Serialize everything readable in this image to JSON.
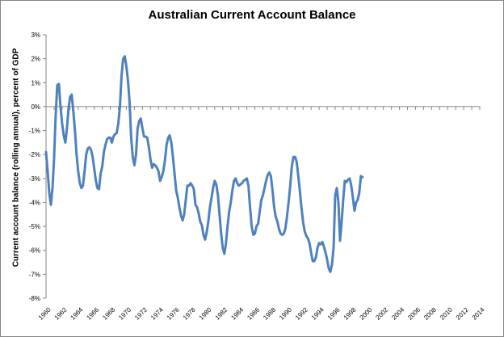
{
  "chart_data": {
    "type": "line",
    "title": "Australian Current Account Balance",
    "xlabel": "",
    "ylabel": "Current account balance (rolling annual), percent of GDP",
    "xlim": [
      1960,
      2014
    ],
    "ylim": [
      -8,
      3
    ],
    "y_ticks": [
      "3%",
      "2%",
      "1%",
      "0%",
      "-1%",
      "-2%",
      "-3%",
      "-4%",
      "-5%",
      "-6%",
      "-7%",
      "-8%"
    ],
    "x_ticks": [
      "1960",
      "1962",
      "1964",
      "1966",
      "1968",
      "1970",
      "1972",
      "1974",
      "1976",
      "1978",
      "1980",
      "1982",
      "1984",
      "1986",
      "1988",
      "1990",
      "1992",
      "1994",
      "1996",
      "1998",
      "2000",
      "2002",
      "2004",
      "2006",
      "2008",
      "2010",
      "2012",
      "2014"
    ],
    "grid": false,
    "legend": "none",
    "series": [
      {
        "color": "#4f81bd",
        "points": [
          [
            1960.0,
            -1.9
          ],
          [
            1960.2,
            -2.7
          ],
          [
            1960.4,
            -3.6
          ],
          [
            1960.6,
            -4.1
          ],
          [
            1960.8,
            -3.4
          ],
          [
            1961.0,
            -2.2
          ],
          [
            1961.2,
            -0.4
          ],
          [
            1961.4,
            0.9
          ],
          [
            1961.6,
            0.95
          ],
          [
            1961.8,
            0.0
          ],
          [
            1962.0,
            -0.7
          ],
          [
            1962.2,
            -1.2
          ],
          [
            1962.4,
            -1.5
          ],
          [
            1962.6,
            -0.9
          ],
          [
            1962.8,
            -0.1
          ],
          [
            1963.0,
            0.4
          ],
          [
            1963.2,
            0.5
          ],
          [
            1963.4,
            -0.2
          ],
          [
            1963.6,
            -1.0
          ],
          [
            1963.8,
            -2.0
          ],
          [
            1964.0,
            -2.7
          ],
          [
            1964.2,
            -3.2
          ],
          [
            1964.4,
            -3.4
          ],
          [
            1964.6,
            -3.3
          ],
          [
            1964.8,
            -2.7
          ],
          [
            1965.0,
            -2.0
          ],
          [
            1965.2,
            -1.75
          ],
          [
            1965.4,
            -1.7
          ],
          [
            1965.6,
            -1.8
          ],
          [
            1965.8,
            -2.1
          ],
          [
            1966.0,
            -2.6
          ],
          [
            1966.2,
            -3.1
          ],
          [
            1966.4,
            -3.4
          ],
          [
            1966.6,
            -3.45
          ],
          [
            1966.8,
            -2.8
          ],
          [
            1967.0,
            -2.5
          ],
          [
            1967.2,
            -1.9
          ],
          [
            1967.4,
            -1.6
          ],
          [
            1967.6,
            -1.35
          ],
          [
            1967.8,
            -1.3
          ],
          [
            1968.0,
            -1.3
          ],
          [
            1968.2,
            -1.5
          ],
          [
            1968.4,
            -1.25
          ],
          [
            1968.6,
            -1.15
          ],
          [
            1968.8,
            -1.1
          ],
          [
            1969.0,
            -0.7
          ],
          [
            1969.2,
            0.0
          ],
          [
            1969.4,
            1.3
          ],
          [
            1969.6,
            2.0
          ],
          [
            1969.8,
            2.1
          ],
          [
            1970.0,
            1.7
          ],
          [
            1970.2,
            1.1
          ],
          [
            1970.4,
            0.2
          ],
          [
            1970.6,
            -1.3
          ],
          [
            1970.8,
            -2.1
          ],
          [
            1971.0,
            -2.45
          ],
          [
            1971.2,
            -2.0
          ],
          [
            1971.4,
            -0.9
          ],
          [
            1971.6,
            -0.6
          ],
          [
            1971.8,
            -0.5
          ],
          [
            1972.0,
            -0.9
          ],
          [
            1972.2,
            -1.25
          ],
          [
            1972.4,
            -1.25
          ],
          [
            1972.6,
            -1.3
          ],
          [
            1972.8,
            -1.7
          ],
          [
            1973.0,
            -2.2
          ],
          [
            1973.2,
            -2.55
          ],
          [
            1973.4,
            -2.4
          ],
          [
            1973.6,
            -2.45
          ],
          [
            1973.8,
            -2.55
          ],
          [
            1974.0,
            -2.7
          ],
          [
            1974.2,
            -3.1
          ],
          [
            1974.4,
            -2.95
          ],
          [
            1974.6,
            -2.7
          ],
          [
            1974.8,
            -2.25
          ],
          [
            1975.0,
            -1.6
          ],
          [
            1975.2,
            -1.3
          ],
          [
            1975.4,
            -1.2
          ],
          [
            1975.6,
            -1.5
          ],
          [
            1975.8,
            -2.1
          ],
          [
            1976.0,
            -2.8
          ],
          [
            1976.2,
            -3.5
          ],
          [
            1976.4,
            -3.8
          ],
          [
            1976.6,
            -4.2
          ],
          [
            1976.8,
            -4.55
          ],
          [
            1977.0,
            -4.75
          ],
          [
            1977.2,
            -4.5
          ],
          [
            1977.4,
            -3.9
          ],
          [
            1977.6,
            -3.3
          ],
          [
            1977.8,
            -3.3
          ],
          [
            1978.0,
            -3.2
          ],
          [
            1978.2,
            -3.3
          ],
          [
            1978.4,
            -3.45
          ],
          [
            1978.6,
            -4.1
          ],
          [
            1978.8,
            -4.2
          ],
          [
            1979.0,
            -4.45
          ],
          [
            1979.2,
            -4.8
          ],
          [
            1979.4,
            -4.95
          ],
          [
            1979.6,
            -5.35
          ],
          [
            1979.8,
            -5.55
          ],
          [
            1980.0,
            -5.25
          ],
          [
            1980.2,
            -4.8
          ],
          [
            1980.4,
            -4.2
          ],
          [
            1980.6,
            -3.8
          ],
          [
            1980.8,
            -3.4
          ],
          [
            1981.0,
            -3.1
          ],
          [
            1981.2,
            -3.25
          ],
          [
            1981.4,
            -3.7
          ],
          [
            1981.6,
            -4.5
          ],
          [
            1981.8,
            -5.3
          ],
          [
            1982.0,
            -5.9
          ],
          [
            1982.2,
            -6.15
          ],
          [
            1982.4,
            -5.7
          ],
          [
            1982.6,
            -5.0
          ],
          [
            1982.8,
            -4.4
          ],
          [
            1983.0,
            -4.0
          ],
          [
            1983.2,
            -3.5
          ],
          [
            1983.4,
            -3.1
          ],
          [
            1983.6,
            -3.0
          ],
          [
            1983.8,
            -3.2
          ],
          [
            1984.0,
            -3.3
          ],
          [
            1984.2,
            -3.25
          ],
          [
            1984.4,
            -3.2
          ],
          [
            1984.6,
            -3.1
          ],
          [
            1984.8,
            -3.05
          ],
          [
            1985.0,
            -3.0
          ],
          [
            1985.2,
            -3.3
          ],
          [
            1985.4,
            -4.2
          ],
          [
            1985.6,
            -5.0
          ],
          [
            1985.8,
            -5.35
          ],
          [
            1986.0,
            -5.3
          ],
          [
            1986.2,
            -5.0
          ],
          [
            1986.4,
            -4.9
          ],
          [
            1986.6,
            -4.4
          ],
          [
            1986.8,
            -3.9
          ],
          [
            1987.0,
            -3.7
          ],
          [
            1987.2,
            -3.4
          ],
          [
            1987.4,
            -3.1
          ],
          [
            1987.6,
            -2.85
          ],
          [
            1987.8,
            -2.75
          ],
          [
            1988.0,
            -2.9
          ],
          [
            1988.2,
            -3.5
          ],
          [
            1988.4,
            -4.2
          ],
          [
            1988.6,
            -4.6
          ],
          [
            1988.8,
            -4.8
          ],
          [
            1989.0,
            -5.1
          ],
          [
            1989.2,
            -5.3
          ],
          [
            1989.4,
            -5.35
          ],
          [
            1989.6,
            -5.3
          ],
          [
            1989.8,
            -5.1
          ],
          [
            1990.0,
            -4.6
          ],
          [
            1990.2,
            -4.0
          ],
          [
            1990.4,
            -3.3
          ],
          [
            1990.6,
            -2.5
          ],
          [
            1990.8,
            -2.1
          ],
          [
            1991.0,
            -2.1
          ],
          [
            1991.2,
            -2.3
          ],
          [
            1991.4,
            -2.9
          ],
          [
            1991.6,
            -3.5
          ],
          [
            1991.8,
            -4.2
          ],
          [
            1992.0,
            -4.8
          ],
          [
            1992.2,
            -5.2
          ],
          [
            1992.4,
            -5.4
          ],
          [
            1992.6,
            -5.5
          ],
          [
            1992.8,
            -5.7
          ],
          [
            1993.0,
            -6.1
          ],
          [
            1993.2,
            -6.45
          ],
          [
            1993.4,
            -6.45
          ],
          [
            1993.6,
            -6.3
          ],
          [
            1993.8,
            -5.9
          ],
          [
            1994.0,
            -5.7
          ],
          [
            1994.2,
            -5.75
          ],
          [
            1994.4,
            -5.65
          ],
          [
            1994.6,
            -5.85
          ],
          [
            1994.8,
            -6.1
          ],
          [
            1995.0,
            -6.4
          ],
          [
            1995.2,
            -6.75
          ],
          [
            1995.4,
            -6.9
          ],
          [
            1995.6,
            -6.6
          ],
          [
            1995.8,
            -5.9
          ],
          [
            1996.0,
            -3.7
          ],
          [
            1996.2,
            -3.4
          ],
          [
            1996.4,
            -4.0
          ],
          [
            1996.6,
            -5.6
          ],
          [
            1996.8,
            -4.8
          ],
          [
            1997.0,
            -3.9
          ],
          [
            1997.2,
            -3.1
          ],
          [
            1997.4,
            -3.15
          ],
          [
            1997.6,
            -3.05
          ],
          [
            1997.8,
            -3.0
          ],
          [
            1998.0,
            -3.3
          ],
          [
            1998.2,
            -3.8
          ],
          [
            1998.4,
            -4.35
          ],
          [
            1998.6,
            -4.0
          ],
          [
            1998.8,
            -3.9
          ],
          [
            1999.0,
            -3.6
          ],
          [
            1999.2,
            -2.9
          ],
          [
            1999.4,
            -2.95
          ]
        ]
      }
    ]
  }
}
